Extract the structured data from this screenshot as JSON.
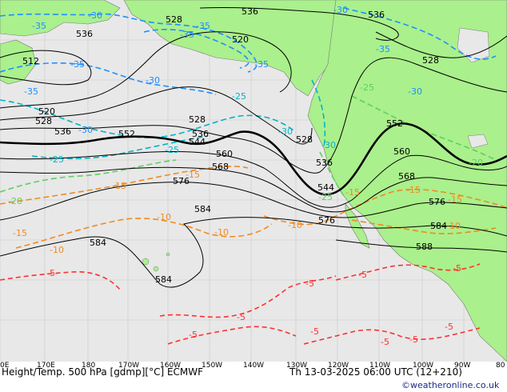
{
  "footer": {
    "title": "Height/Temp. 500 hPa [gdmp][°C] ECMWF",
    "valid_time": "Th 13-03-2025 06:00 UTC (12+210)",
    "credit": "©weatheronline.co.uk"
  },
  "axis": {
    "longitudes": [
      "0E",
      "170E",
      "180",
      "170W",
      "160W",
      "150W",
      "140W",
      "130W",
      "120W",
      "110W",
      "100W",
      "90W",
      "80"
    ]
  },
  "colors": {
    "ocean": "#e8e8e8",
    "land": "#aaf08c",
    "height_contour": "#000000",
    "temp_cold": "#1f8fff",
    "temp_cyan": "#00b4c8",
    "temp_green": "#5fcf5f",
    "temp_orange": "#f08a20",
    "temp_red": "#ff3030"
  },
  "height_labels": [
    "536",
    "528",
    "536",
    "520",
    "536",
    "512",
    "528",
    "520",
    "528",
    "536",
    "552",
    "528",
    "536",
    "544",
    "528",
    "552",
    "560",
    "560",
    "568",
    "536",
    "544",
    "576",
    "568",
    "584",
    "576",
    "576",
    "584",
    "584",
    "588",
    "584"
  ],
  "temp_labels": {
    "blue": [
      "-30",
      "-35",
      "-35",
      "-30",
      "-35",
      "-35",
      "-30",
      "-35",
      "-30",
      "-35",
      "-30",
      "-35"
    ],
    "cyan": [
      "-30",
      "-30",
      "-25",
      "-25",
      "-25",
      "-30",
      "-30",
      "-25",
      "-25"
    ],
    "green": [
      "-25",
      "-20",
      "-20",
      "-25",
      "-25",
      "-20"
    ],
    "orange": [
      "-15",
      "-15",
      "-15",
      "-10",
      "-10",
      "-10",
      "-10",
      "-15",
      "-15",
      "-10",
      "-15"
    ],
    "red": [
      "-5",
      "-5",
      "-5",
      "-5",
      "-5",
      "-5",
      "-5",
      "-5",
      "-5",
      "-5"
    ]
  }
}
